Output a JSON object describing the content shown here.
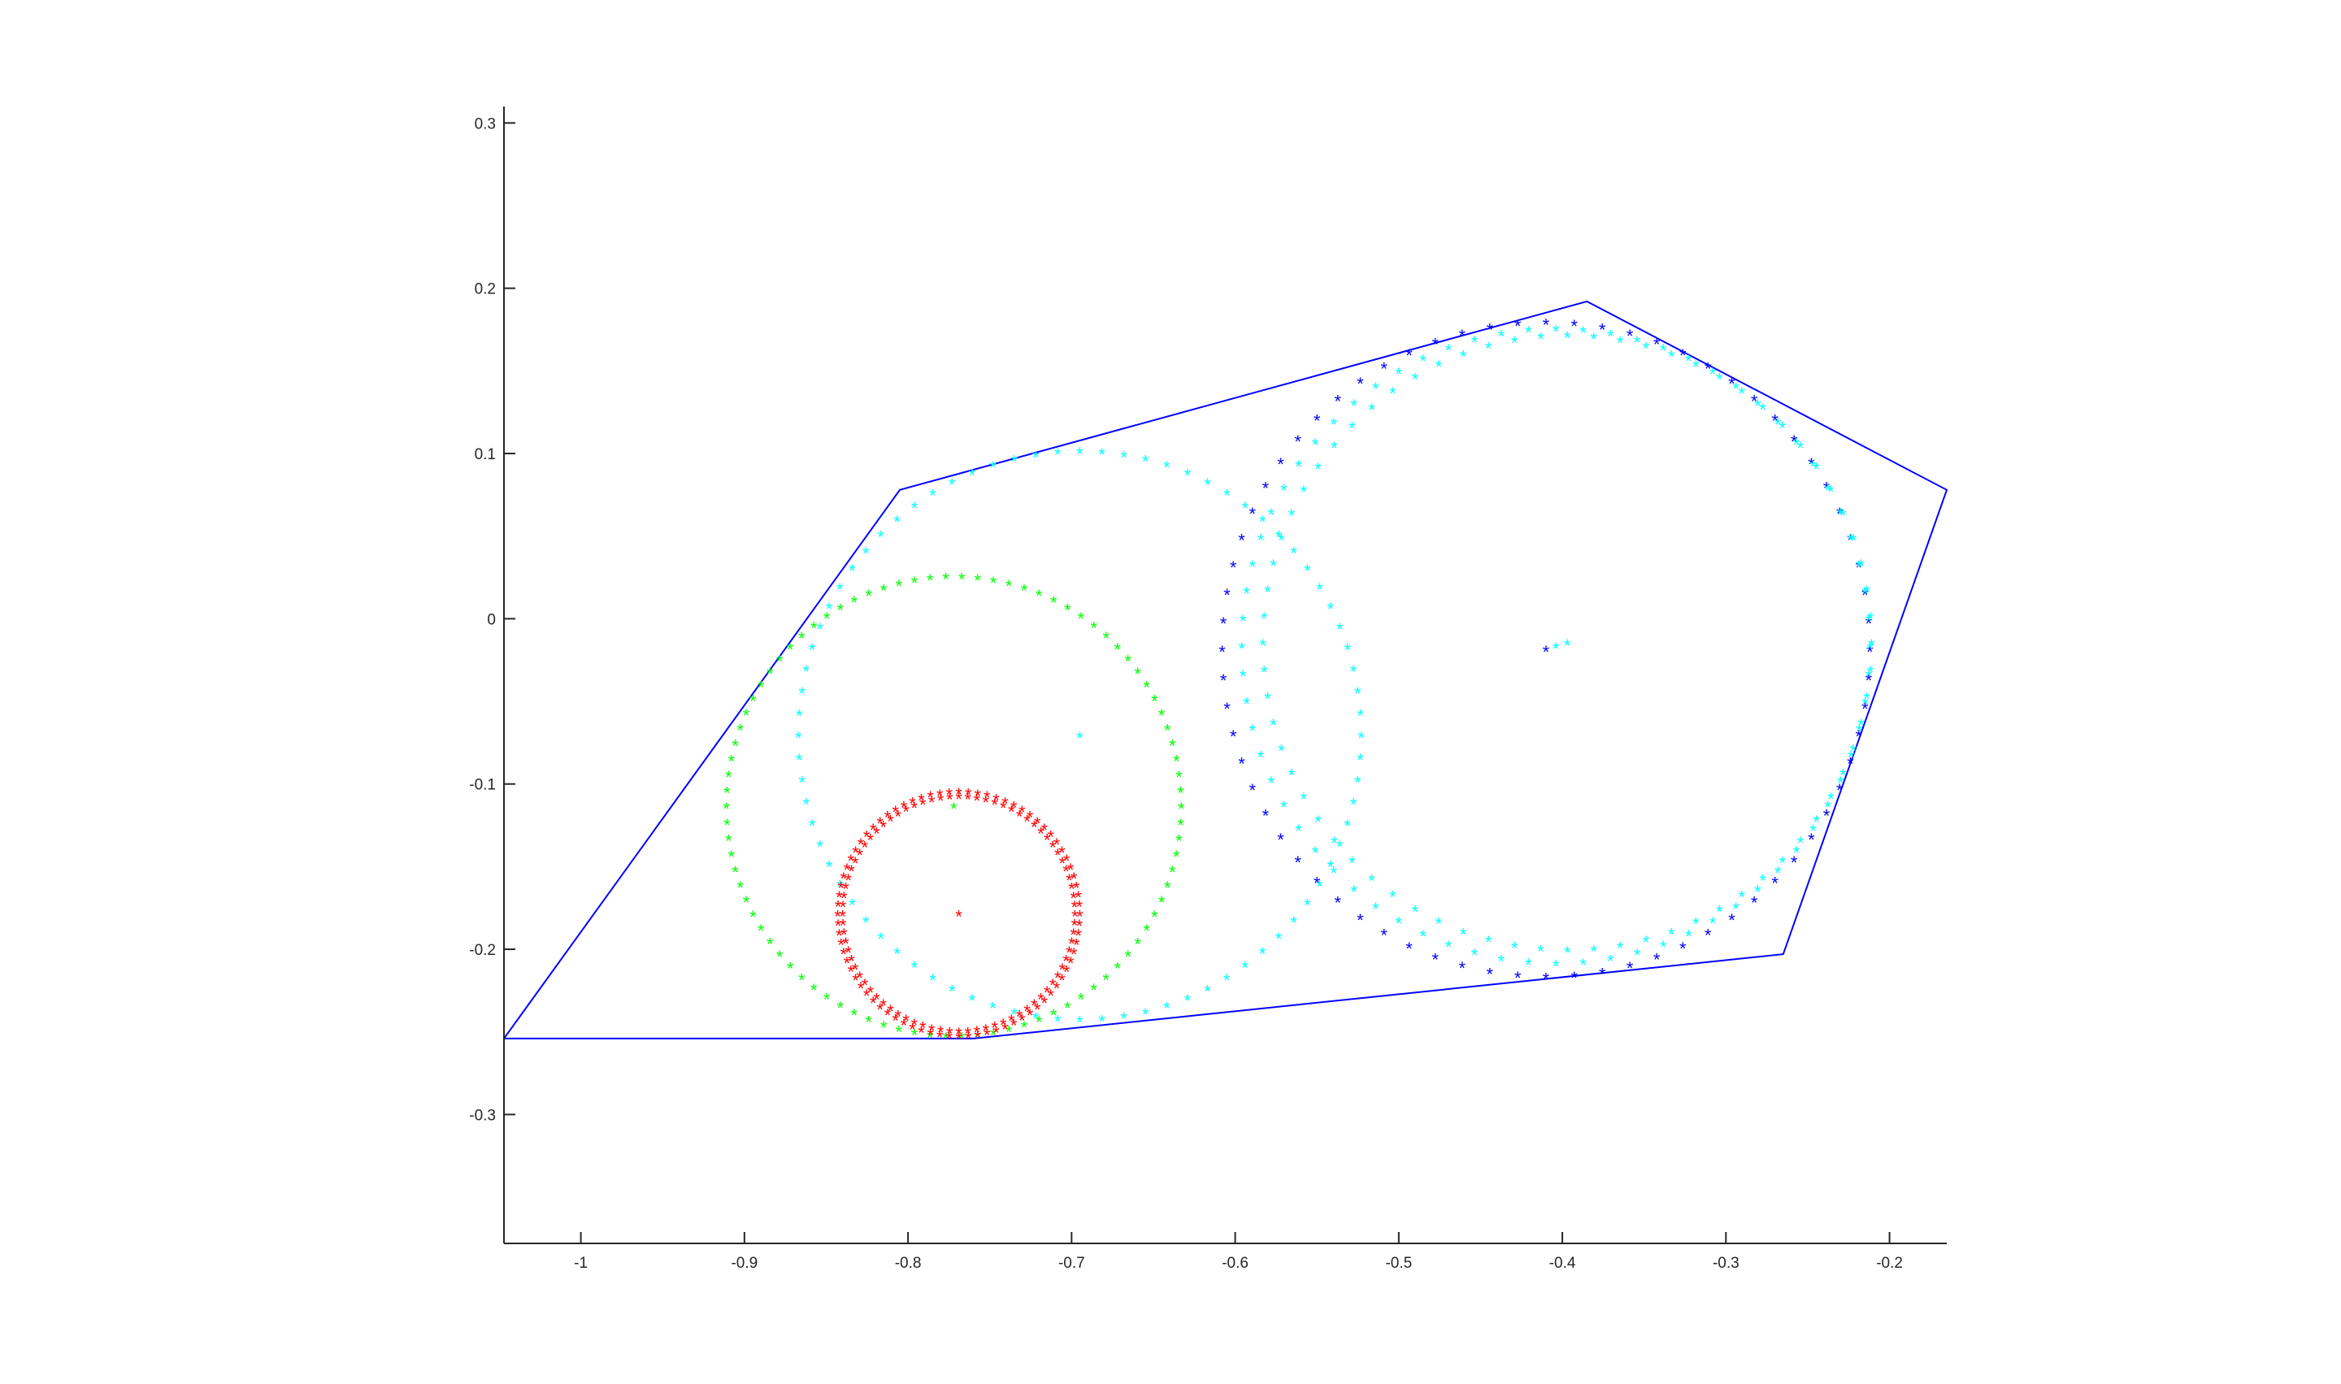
{
  "chart_data": {
    "type": "scatter",
    "title": "",
    "xlabel": "",
    "ylabel": "",
    "xlim": [
      -1.047,
      -0.165
    ],
    "ylim": [
      -0.378,
      0.31
    ],
    "xticks": [
      -1,
      -0.9,
      -0.8,
      -0.7,
      -0.6,
      -0.5,
      -0.4,
      -0.3,
      -0.2
    ],
    "yticks": [
      -0.3,
      -0.2,
      -0.1,
      0,
      0.1,
      0.2,
      0.3
    ],
    "xtick_labels": [
      "-1",
      "-0.9",
      "-0.8",
      "-0.7",
      "-0.6",
      "-0.5",
      "-0.4",
      "-0.3",
      "-0.2"
    ],
    "ytick_labels": [
      "-0.3",
      "-0.2",
      "-0.1",
      "0",
      "0.1",
      "0.2",
      "0.3"
    ],
    "grid": false,
    "legend": "none",
    "polygon": {
      "color": "#0000ff",
      "points": [
        [
          -1.047,
          -0.254
        ],
        [
          -0.805,
          0.078
        ],
        [
          -0.385,
          0.192
        ],
        [
          -0.165,
          0.078
        ],
        [
          -0.265,
          -0.203
        ],
        [
          -0.76,
          -0.254
        ],
        [
          -1.047,
          -0.254
        ]
      ]
    },
    "circles": [
      {
        "color": "#0000ff",
        "marker": "*",
        "center": [
          -0.41,
          -0.02
        ],
        "radius": 0.198,
        "count": 72,
        "marked_center": true
      },
      {
        "color": "#00ffff",
        "marker": "*",
        "center": [
          -0.404,
          -0.018
        ],
        "radius": 0.192,
        "count": 72,
        "marked_center": true
      },
      {
        "color": "#00ffff",
        "marker": "*",
        "center": [
          -0.397,
          -0.016
        ],
        "radius": 0.186,
        "count": 72,
        "marked_center": true
      },
      {
        "color": "#00ffff",
        "marker": "*",
        "center": [
          -0.695,
          -0.072
        ],
        "radius": 0.172,
        "count": 80,
        "marked_center": true
      },
      {
        "color": "#00ff00",
        "marker": "*",
        "center": [
          -0.772,
          -0.115
        ],
        "radius": 0.139,
        "count": 90,
        "marked_center": true
      },
      {
        "color": "#ff0000",
        "marker": "*",
        "center": [
          -0.769,
          -0.18
        ],
        "radius": 0.074,
        "count": 80,
        "marked_center": true
      },
      {
        "color": "#ff0000",
        "marker": "*",
        "center": [
          -0.769,
          -0.18
        ],
        "radius": 0.071,
        "count": 80,
        "marked_center": false
      }
    ]
  }
}
